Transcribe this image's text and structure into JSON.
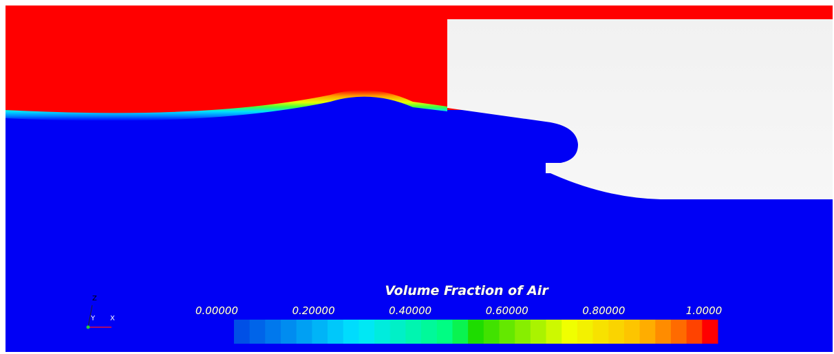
{
  "colorbar": {
    "title": "Volume Fraction of Air",
    "ticks": [
      "0.00000",
      "0.20000",
      "0.40000",
      "0.60000",
      "0.80000",
      "1.0000"
    ]
  },
  "triad": {
    "z": "Z",
    "y": "Y",
    "x": "X"
  }
}
